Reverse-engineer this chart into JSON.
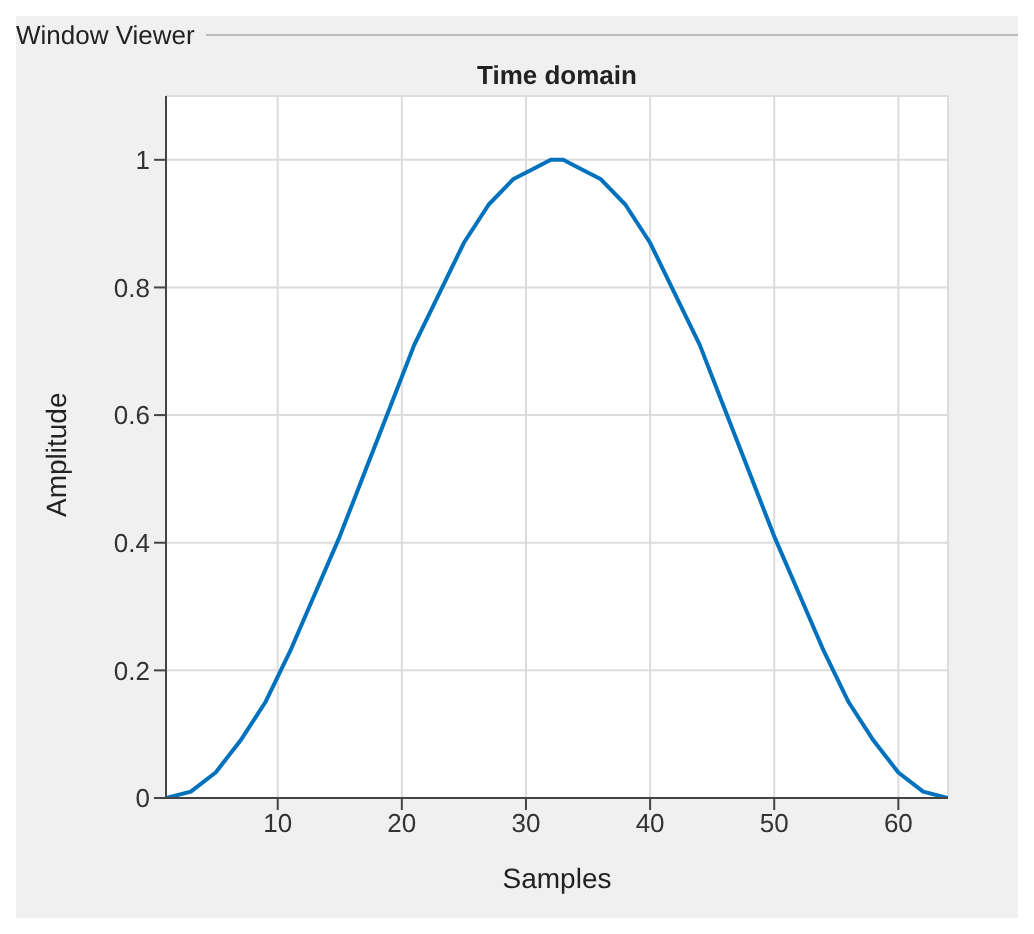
{
  "chart_data": {
    "type": "line",
    "title": "Time domain",
    "xlabel": "Samples",
    "ylabel": "Amplitude",
    "annotations": [
      "Window Viewer"
    ],
    "x": [
      1,
      3,
      5,
      7,
      9,
      11,
      13,
      15,
      17,
      19,
      21,
      23,
      25,
      27,
      29,
      31,
      32,
      33,
      34,
      36,
      38,
      40,
      42,
      44,
      46,
      48,
      50,
      52,
      54,
      56,
      58,
      60,
      62,
      64
    ],
    "series": [
      {
        "color": "#0072bd",
        "values": [
          0,
          0.01,
          0.04,
          0.09,
          0.15,
          0.23,
          0.32,
          0.41,
          0.51,
          0.61,
          0.71,
          0.79,
          0.87,
          0.93,
          0.97,
          0.99,
          1.0,
          1.0,
          0.99,
          0.97,
          0.93,
          0.87,
          0.79,
          0.71,
          0.61,
          0.51,
          0.41,
          0.32,
          0.23,
          0.15,
          0.09,
          0.04,
          0.01,
          0
        ]
      }
    ],
    "xlim": [
      1,
      64
    ],
    "xticks": [
      10,
      20,
      30,
      40,
      50,
      60
    ],
    "ylim": [
      0,
      1.1
    ],
    "yticks": [
      0,
      0.2,
      0.4,
      0.6,
      0.8,
      1
    ],
    "grid": true
  }
}
